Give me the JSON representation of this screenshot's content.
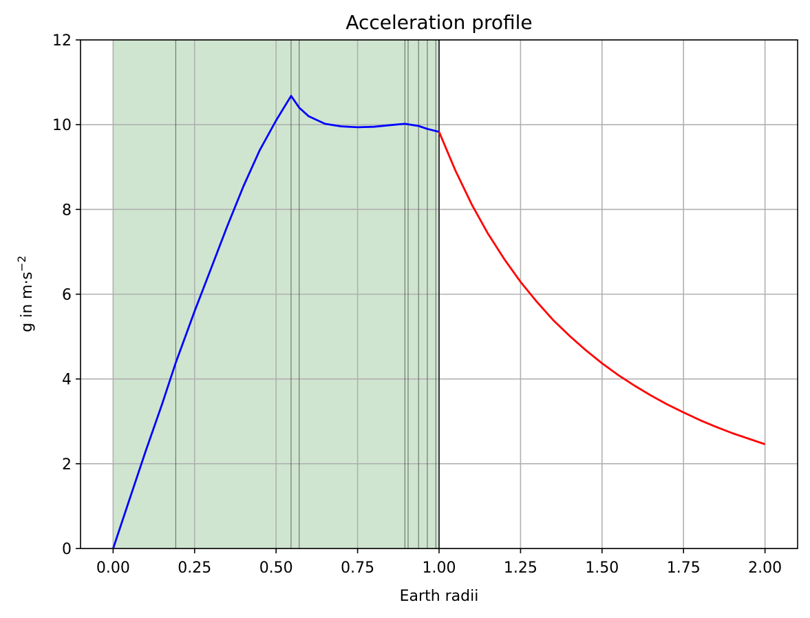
{
  "chart_data": {
    "type": "line",
    "title": "Acceleration profile",
    "xlabel": "Earth radii",
    "ylabel": "g in m·s",
    "ylabel_exponent": "−2",
    "xlim": [
      -0.1,
      2.1
    ],
    "ylim": [
      0,
      12
    ],
    "x_ticks": [
      0.0,
      0.25,
      0.5,
      0.75,
      1.0,
      1.25,
      1.5,
      1.75,
      2.0
    ],
    "x_tick_labels": [
      "0.00",
      "0.25",
      "0.50",
      "0.75",
      "1.00",
      "1.25",
      "1.50",
      "1.75",
      "2.00"
    ],
    "y_ticks": [
      0,
      2,
      4,
      6,
      8,
      10,
      12
    ],
    "y_tick_labels": [
      "0",
      "2",
      "4",
      "6",
      "8",
      "10",
      "12"
    ],
    "grid": true,
    "shaded_region": {
      "x": [
        0.0,
        1.0
      ],
      "color": "#cfe5cf"
    },
    "boundary_lines": [
      0.192,
      0.546,
      0.571,
      0.895,
      0.905,
      0.937,
      0.964,
      0.99,
      1.0
    ],
    "series": [
      {
        "color": "#0000ff",
        "x": [
          0.0,
          0.05,
          0.1,
          0.15,
          0.192,
          0.25,
          0.3,
          0.35,
          0.4,
          0.45,
          0.5,
          0.546,
          0.571,
          0.6,
          0.65,
          0.7,
          0.75,
          0.8,
          0.85,
          0.895,
          0.905,
          0.937,
          0.964,
          1.0
        ],
        "y": [
          0.0,
          1.15,
          2.3,
          3.4,
          4.38,
          5.6,
          6.6,
          7.6,
          8.55,
          9.4,
          10.1,
          10.68,
          10.4,
          10.2,
          10.02,
          9.96,
          9.94,
          9.95,
          9.99,
          10.02,
          10.01,
          9.97,
          9.9,
          9.83
        ]
      },
      {
        "color": "#ff0000",
        "x": [
          1.0,
          1.05,
          1.1,
          1.15,
          1.2,
          1.25,
          1.3,
          1.35,
          1.4,
          1.45,
          1.5,
          1.55,
          1.6,
          1.65,
          1.7,
          1.75,
          1.8,
          1.85,
          1.9,
          1.95,
          2.0
        ],
        "y": [
          9.83,
          8.92,
          8.12,
          7.43,
          6.83,
          6.29,
          5.82,
          5.39,
          5.02,
          4.68,
          4.37,
          4.09,
          3.84,
          3.61,
          3.4,
          3.21,
          3.03,
          2.87,
          2.72,
          2.59,
          2.46
        ]
      }
    ]
  }
}
